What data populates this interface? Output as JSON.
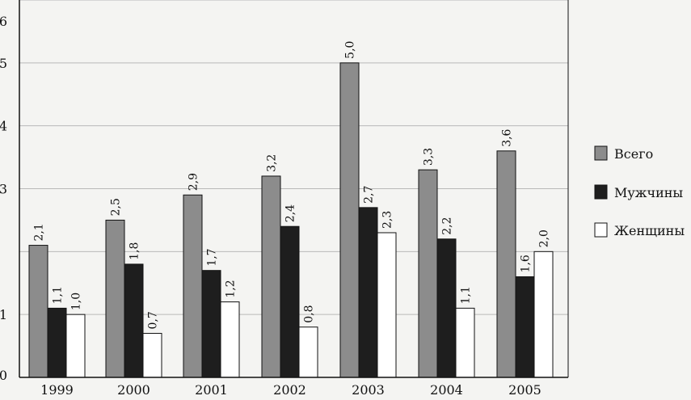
{
  "chart_data": {
    "type": "bar",
    "title": "",
    "xlabel": "",
    "ylabel": "",
    "categories": [
      "1999",
      "2000",
      "2001",
      "2002",
      "2003",
      "2004",
      "2005"
    ],
    "series": [
      {
        "name": "Всего",
        "color": "#8c8c8c",
        "values": [
          2.1,
          2.5,
          2.9,
          3.2,
          5.0,
          3.3,
          3.6
        ],
        "labels": [
          "2,1",
          "2,5",
          "2,9",
          "3,2",
          "5,0",
          "3,3",
          "3,6"
        ]
      },
      {
        "name": "Мужчины",
        "color": "#1e1e1e",
        "values": [
          1.1,
          1.8,
          1.7,
          2.4,
          2.7,
          2.2,
          1.6
        ],
        "labels": [
          "1,1",
          "1,8",
          "1,7",
          "2,4",
          "2,7",
          "2,2",
          "1,6"
        ]
      },
      {
        "name": "Женщины",
        "color": "#ffffff",
        "values": [
          1.0,
          0.7,
          1.2,
          0.8,
          2.3,
          1.1,
          2.0
        ],
        "labels": [
          "1,0",
          "0,7",
          "1,2",
          "0,8",
          "2,3",
          "1,1",
          "2,0"
        ]
      }
    ],
    "yticks": [
      0,
      1,
      3,
      4,
      5,
      6
    ],
    "ytick_labels": [
      "0",
      "1",
      "3",
      "4",
      "5",
      "6"
    ],
    "ylim": [
      0,
      6
    ],
    "gridlines": [
      1,
      2,
      3,
      4,
      5,
      6
    ],
    "grid": true,
    "legend_position": "right"
  }
}
